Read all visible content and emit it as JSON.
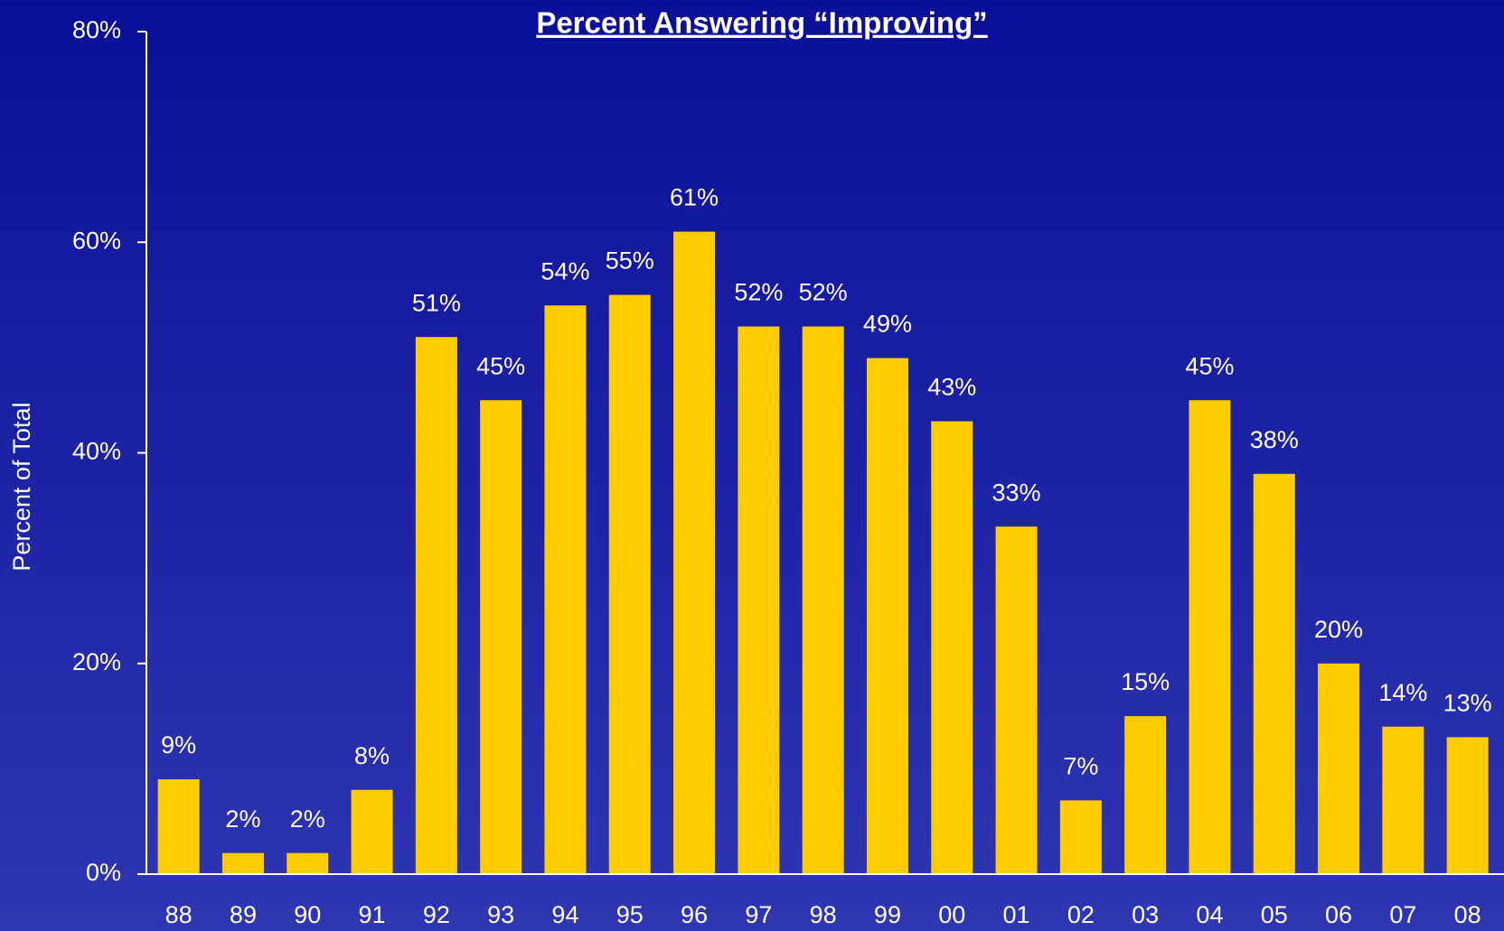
{
  "chart_data": {
    "type": "bar",
    "title": "Percent Answering “Improving”",
    "y_label": "Percent of Total",
    "categories": [
      "88",
      "89",
      "90",
      "91",
      "92",
      "93",
      "94",
      "95",
      "96",
      "97",
      "98",
      "99",
      "00",
      "01",
      "02",
      "03",
      "04",
      "05",
      "06",
      "07",
      "08"
    ],
    "values": [
      9,
      2,
      2,
      8,
      51,
      45,
      54,
      55,
      61,
      52,
      52,
      49,
      43,
      33,
      7,
      15,
      45,
      38,
      20,
      14,
      13
    ],
    "value_labels": [
      "9%",
      "2%",
      "2%",
      "8%",
      "51%",
      "45%",
      "54%",
      "55%",
      "61%",
      "52%",
      "52%",
      "49%",
      "43%",
      "33%",
      "7%",
      "15%",
      "45%",
      "38%",
      "20%",
      "14%",
      "13%"
    ],
    "color": "#ffcc00",
    "ylim": [
      0,
      80
    ],
    "yticks": [
      {
        "value": 0,
        "label": "0%"
      },
      {
        "value": 20,
        "label": "20%"
      },
      {
        "value": 40,
        "label": "40%"
      },
      {
        "value": 60,
        "label": "60%"
      },
      {
        "value": 80,
        "label": "80%"
      }
    ],
    "grid": false
  }
}
